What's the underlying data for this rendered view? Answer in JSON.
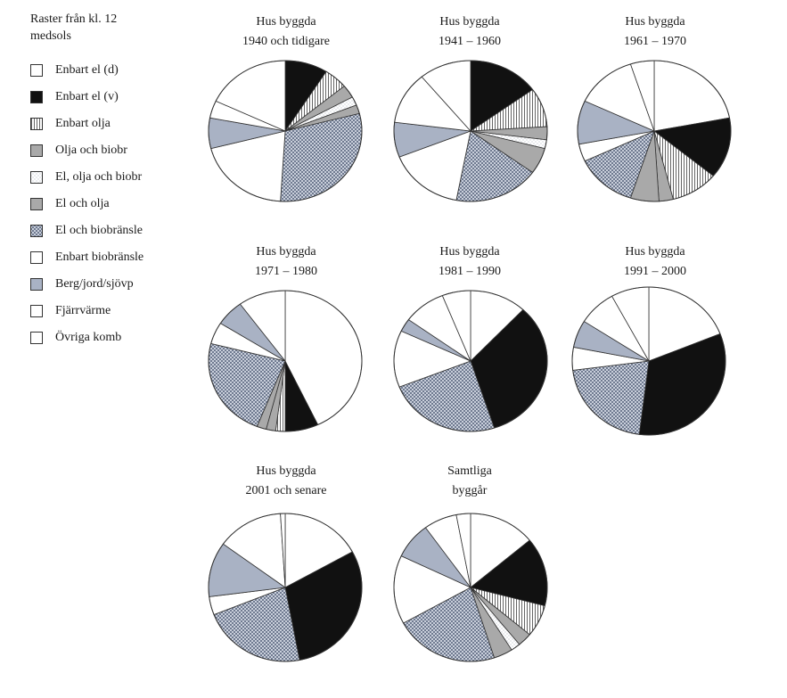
{
  "legend": {
    "title_line1": "Raster från kl. 12",
    "title_line2": "medsols"
  },
  "categories": [
    {
      "key": "el_d",
      "label": "Enbart el (d)",
      "pattern": "white"
    },
    {
      "key": "el_v",
      "label": "Enbart el (v)",
      "pattern": "black"
    },
    {
      "key": "olja",
      "label": "Enbart olja",
      "pattern": "vlines"
    },
    {
      "key": "olja_bio",
      "label": "Olja och biobr",
      "pattern": "gray"
    },
    {
      "key": "el_olja_bio",
      "label": "El, olja och biobr",
      "pattern": "dots"
    },
    {
      "key": "el_olja",
      "label": "El och olja",
      "pattern": "gray"
    },
    {
      "key": "el_bio",
      "label": "El och biobränsle",
      "pattern": "checker"
    },
    {
      "key": "bio",
      "label": "Enbart biobränsle",
      "pattern": "white"
    },
    {
      "key": "berg",
      "label": "Berg/jord/sjövp",
      "pattern": "bluegray"
    },
    {
      "key": "fjarr",
      "label": "Fjärrvärme",
      "pattern": "white"
    },
    {
      "key": "ovriga",
      "label": "Övriga komb",
      "pattern": "white"
    }
  ],
  "colors": {
    "white": "#ffffff",
    "black": "#111111",
    "gray": "#a9a9a9",
    "bluegray": "#a9b2c4",
    "outline": "#333333"
  },
  "chart_data": [
    {
      "type": "pie",
      "title_line1": "Hus byggda",
      "title_line2": "1940 och tidigare",
      "values": [
        0,
        9,
        5,
        3,
        2,
        2,
        30,
        20,
        7,
        4,
        18
      ]
    },
    {
      "type": "pie",
      "title_line1": "Hus byggda",
      "title_line2": "1941 – 1960",
      "values": [
        0,
        15,
        9,
        3,
        2,
        6,
        18,
        16,
        8,
        12,
        11
      ]
    },
    {
      "type": "pie",
      "title_line1": "Hus byggda",
      "title_line2": "1961 – 1970",
      "values": [
        22,
        14,
        10,
        3,
        0,
        6,
        13,
        4,
        10,
        13,
        5
      ]
    },
    {
      "type": "pie",
      "title_line1": "Hus byggda",
      "title_line2": "1971 – 1980",
      "values": [
        43,
        7,
        2,
        2,
        0,
        2,
        23,
        5,
        6,
        10,
        0
      ]
    },
    {
      "type": "pie",
      "title_line1": "Hus byggda",
      "title_line2": "1981 – 1990",
      "values": [
        12,
        33,
        0,
        0,
        0,
        0,
        24,
        13,
        3,
        9,
        6
      ]
    },
    {
      "type": "pie",
      "title_line1": "Hus byggda",
      "title_line2": "1991 – 2000",
      "values": [
        19,
        33,
        0,
        0,
        0,
        0,
        21,
        5,
        6,
        8,
        8
      ]
    },
    {
      "type": "pie",
      "title_line1": "Hus byggda",
      "title_line2": "2001 och senare",
      "values": [
        17,
        30,
        0,
        0,
        0,
        0,
        22,
        4,
        12,
        14,
        1
      ]
    },
    {
      "type": "pie",
      "title_line1": "Samtliga",
      "title_line2": "byggår",
      "values": [
        14,
        15,
        7,
        3,
        2,
        4,
        22,
        15,
        8,
        7,
        3
      ]
    }
  ]
}
